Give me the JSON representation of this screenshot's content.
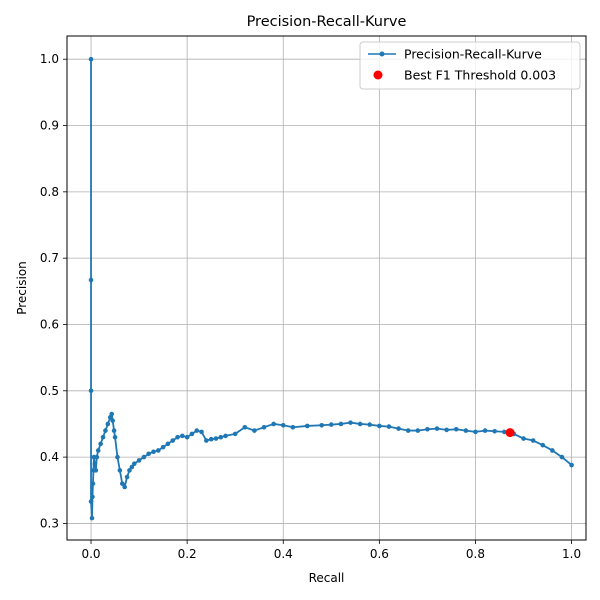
{
  "chart_data": {
    "type": "line",
    "title": "Precision-Recall-Kurve",
    "xlabel": "Recall",
    "ylabel": "Precision",
    "xlim": [
      -0.05,
      1.03
    ],
    "ylim": [
      0.275,
      1.035
    ],
    "x_ticks": [
      0.0,
      0.2,
      0.4,
      0.6,
      0.8,
      1.0
    ],
    "x_tick_labels": [
      "0.0",
      "0.2",
      "0.4",
      "0.6",
      "0.8",
      "1.0"
    ],
    "y_ticks": [
      0.3,
      0.4,
      0.5,
      0.6,
      0.7,
      0.8,
      0.9,
      1.0
    ],
    "y_tick_labels": [
      "0.3",
      "0.4",
      "0.5",
      "0.6",
      "0.7",
      "0.8",
      "0.9",
      "1.0"
    ],
    "grid": true,
    "legend_position": "top-right",
    "series": [
      {
        "name": "Precision-Recall-Kurve",
        "color": "#1f77b4",
        "marker": "dot",
        "x": [
          0.0,
          0.0,
          0.0,
          0.0,
          0.002,
          0.003,
          0.004,
          0.005,
          0.006,
          0.008,
          0.01,
          0.012,
          0.015,
          0.02,
          0.025,
          0.03,
          0.035,
          0.04,
          0.043,
          0.045,
          0.048,
          0.05,
          0.055,
          0.06,
          0.065,
          0.07,
          0.075,
          0.08,
          0.085,
          0.09,
          0.1,
          0.11,
          0.12,
          0.13,
          0.14,
          0.15,
          0.16,
          0.17,
          0.18,
          0.19,
          0.2,
          0.21,
          0.22,
          0.23,
          0.24,
          0.25,
          0.26,
          0.27,
          0.28,
          0.3,
          0.32,
          0.34,
          0.36,
          0.38,
          0.4,
          0.42,
          0.45,
          0.48,
          0.5,
          0.52,
          0.54,
          0.56,
          0.58,
          0.6,
          0.62,
          0.64,
          0.66,
          0.68,
          0.7,
          0.72,
          0.74,
          0.76,
          0.78,
          0.8,
          0.82,
          0.84,
          0.86,
          0.87,
          0.88,
          0.9,
          0.92,
          0.94,
          0.96,
          0.98,
          1.0
        ],
        "y": [
          1.0,
          0.667,
          0.5,
          0.333,
          0.308,
          0.34,
          0.36,
          0.38,
          0.4,
          0.39,
          0.38,
          0.4,
          0.41,
          0.42,
          0.43,
          0.44,
          0.45,
          0.46,
          0.465,
          0.455,
          0.44,
          0.43,
          0.4,
          0.38,
          0.36,
          0.355,
          0.37,
          0.38,
          0.385,
          0.39,
          0.395,
          0.4,
          0.405,
          0.408,
          0.41,
          0.415,
          0.42,
          0.425,
          0.43,
          0.432,
          0.43,
          0.435,
          0.44,
          0.438,
          0.425,
          0.427,
          0.428,
          0.43,
          0.432,
          0.435,
          0.445,
          0.44,
          0.445,
          0.45,
          0.448,
          0.445,
          0.447,
          0.448,
          0.449,
          0.45,
          0.452,
          0.45,
          0.449,
          0.447,
          0.446,
          0.443,
          0.44,
          0.44,
          0.442,
          0.443,
          0.441,
          0.442,
          0.44,
          0.438,
          0.44,
          0.439,
          0.438,
          0.437,
          0.435,
          0.428,
          0.425,
          0.418,
          0.41,
          0.4,
          0.388
        ]
      }
    ],
    "highlight": {
      "name": "Best F1 Threshold 0.003",
      "color": "#ff0000",
      "x": 0.872,
      "y": 0.437
    }
  }
}
